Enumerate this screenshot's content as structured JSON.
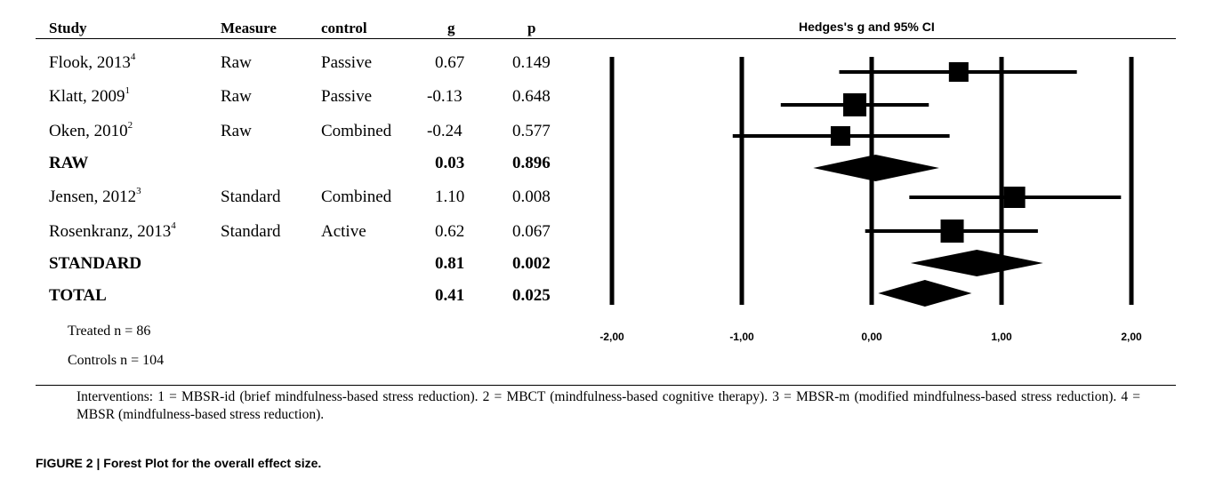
{
  "table": {
    "headers": {
      "study": "Study",
      "measure": "Measure",
      "control": "control",
      "g": "g",
      "p": "p",
      "plot_title": "Hedges's g and 95% CI"
    },
    "rows": [
      {
        "study": "Flook, 2013",
        "sup": "4",
        "measure": "Raw",
        "control": "Passive",
        "g": "0.67",
        "p": "0.149",
        "bold": false
      },
      {
        "study": "Klatt, 2009",
        "sup": "1",
        "measure": "Raw",
        "control": "Passive",
        "g": "-0.13",
        "p": "0.648",
        "bold": false
      },
      {
        "study": "Oken, 2010",
        "sup": "2",
        "measure": "Raw",
        "control": "Combined",
        "g": "-0.24",
        "p": "0.577",
        "bold": false
      },
      {
        "study": "RAW",
        "sup": "",
        "measure": "",
        "control": "",
        "g": "0.03",
        "p": "0.896",
        "bold": true
      },
      {
        "study": "Jensen, 2012",
        "sup": "3",
        "measure": "Standard",
        "control": "Combined",
        "g": "1.10",
        "p": "0.008",
        "bold": false
      },
      {
        "study": "Rosenkranz, 2013",
        "sup": "4",
        "measure": "Standard",
        "control": "Active",
        "g": "0.62",
        "p": "0.067",
        "bold": false
      },
      {
        "study": "STANDARD",
        "sup": "",
        "measure": "",
        "control": "",
        "g": "0.81",
        "p": "0.002",
        "bold": true
      },
      {
        "study": "TOTAL",
        "sup": "",
        "measure": "",
        "control": "",
        "g": "0.41",
        "p": "0.025",
        "bold": true
      }
    ],
    "treated": "Treated  n =   86",
    "controls": "Controls n = 104"
  },
  "footnote": "Interventions: 1 = MBSR-id (brief mindfulness-based stress reduction). 2 = MBCT (mindfulness-based cognitive therapy). 3 = MBSR-m (modified mindfulness-based stress reduction). 4 = MBSR (mindfulness-based stress reduction).",
  "caption": "FIGURE 2 | Forest Plot for the overall effect size.",
  "chart_data": {
    "type": "scatter",
    "subtype": "forest",
    "title": "Hedges's g and 95% CI",
    "xlim": [
      -2.0,
      2.0
    ],
    "x_ticks": [
      "-2,00",
      "-1,00",
      "0,00",
      "1,00",
      "2,00"
    ],
    "x_tick_values": [
      -2,
      -1,
      0,
      1,
      2
    ],
    "studies": [
      {
        "label": "Flook, 2013",
        "kind": "study",
        "g": 0.67,
        "ci_low": -0.25,
        "ci_high": 1.58,
        "weight": 0.6
      },
      {
        "label": "Klatt, 2009",
        "kind": "study",
        "g": -0.13,
        "ci_low": -0.7,
        "ci_high": 0.44,
        "weight": 1.0
      },
      {
        "label": "Oken, 2010",
        "kind": "study",
        "g": -0.24,
        "ci_low": -1.07,
        "ci_high": 0.6,
        "weight": 0.6
      },
      {
        "label": "RAW",
        "kind": "summary",
        "g": 0.03,
        "ci_low": -0.45,
        "ci_high": 0.52
      },
      {
        "label": "Jensen, 2012",
        "kind": "study",
        "g": 1.1,
        "ci_low": 0.29,
        "ci_high": 1.92,
        "weight": 0.8
      },
      {
        "label": "Rosenkranz, 2013",
        "kind": "study",
        "g": 0.62,
        "ci_low": -0.05,
        "ci_high": 1.28,
        "weight": 1.0
      },
      {
        "label": "STANDARD",
        "kind": "summary",
        "g": 0.81,
        "ci_low": 0.3,
        "ci_high": 1.32
      },
      {
        "label": "TOTAL",
        "kind": "summary",
        "g": 0.41,
        "ci_low": 0.05,
        "ci_high": 0.77
      }
    ],
    "reference_lines": [
      -2,
      -1,
      0,
      1,
      2
    ],
    "grid": false
  }
}
